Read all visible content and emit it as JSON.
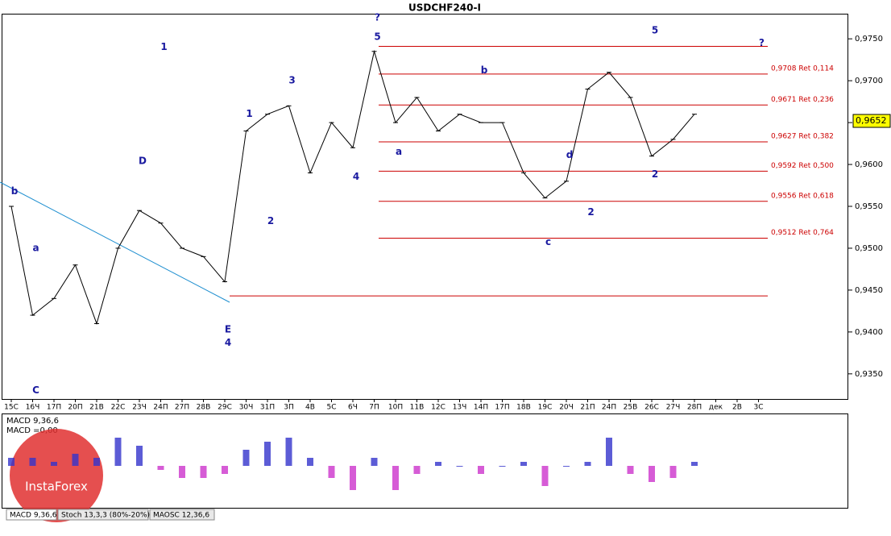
{
  "chart_data": {
    "type": "line",
    "title": "USDCHF240-I",
    "categories": [
      "15С",
      "16Ч",
      "17П",
      "20П",
      "21В",
      "22С",
      "23Ч",
      "24П",
      "27П",
      "28В",
      "29С",
      "30Ч",
      "31П",
      "3П",
      "4В",
      "5С",
      "6Ч",
      "7П",
      "10П",
      "11В",
      "12С",
      "13Ч",
      "14П",
      "17П",
      "18В",
      "19С",
      "20Ч",
      "21П",
      "24П",
      "25В",
      "26С",
      "27Ч",
      "28П",
      "дек",
      "2В",
      "3С"
    ],
    "series": [
      {
        "name": "USDCHF",
        "color": "#000000",
        "values": [
          0.955,
          0.942,
          0.944,
          0.948,
          0.941,
          0.95,
          0.9545,
          0.953,
          0.95,
          0.949,
          0.946,
          0.964,
          0.966,
          0.967,
          0.959,
          0.965,
          0.962,
          0.9735,
          0.965,
          0.968,
          0.964,
          0.966,
          0.965,
          0.965,
          0.959,
          0.956,
          0.958,
          0.969,
          0.971,
          0.968,
          0.961,
          0.963,
          0.966,
          null,
          null,
          null
        ]
      }
    ],
    "ylim": [
      0.932,
      0.978
    ],
    "yticks": [
      {
        "value": 0.935,
        "label": "0,9350"
      },
      {
        "value": 0.94,
        "label": "0,9400"
      },
      {
        "value": 0.945,
        "label": "0,9450"
      },
      {
        "value": 0.95,
        "label": "0,9500"
      },
      {
        "value": 0.955,
        "label": "0,9550"
      },
      {
        "value": 0.96,
        "label": "0,9600"
      },
      {
        "value": 0.965,
        "label": "0,9650"
      },
      {
        "value": 0.97,
        "label": "0,9700"
      },
      {
        "value": 0.975,
        "label": "0,9750"
      }
    ],
    "current_price": {
      "value": 0.9652,
      "label": "0,9652"
    },
    "levels": [
      {
        "value": 0.9741
      },
      {
        "value": 0.9708,
        "label": "0,9708 Ret 0,114"
      },
      {
        "value": 0.9671,
        "label": "0,9671 Ret 0,236"
      },
      {
        "value": 0.9627,
        "label": "0,9627 Ret 0,382"
      },
      {
        "value": 0.9592,
        "label": "0,9592 Ret 0,500"
      },
      {
        "value": 0.9556,
        "label": "0,9556 Ret 0,618"
      },
      {
        "value": 0.9512,
        "label": "0,9512 Ret 0,764"
      },
      {
        "value": 0.9443
      }
    ],
    "level_color": "#cc0000",
    "annotations": [
      {
        "text": "b",
        "x": "15С",
        "y": 0.9568
      },
      {
        "text": "a",
        "x": "16Ч",
        "y": 0.95
      },
      {
        "text": "C",
        "x": "16Ч",
        "y": 0.933
      },
      {
        "text": "D",
        "x": "23Ч",
        "y": 0.9604
      },
      {
        "text": "E",
        "x": "29С",
        "y": 0.9403
      },
      {
        "text": "4",
        "x": "29С",
        "y": 0.9387
      },
      {
        "text": "1",
        "x": "30Ч",
        "y": 0.966
      },
      {
        "text": "2",
        "x": "31П",
        "y": 0.9532
      },
      {
        "text": "3",
        "x": "3П",
        "y": 0.97
      },
      {
        "text": "4",
        "x": "6Ч",
        "y": 0.9585
      },
      {
        "text": "5",
        "x": "7П",
        "y": 0.9752
      },
      {
        "text": "?",
        "x": "7П",
        "y": 0.9775
      },
      {
        "text": "a",
        "x": "10П",
        "y": 0.9615
      },
      {
        "text": "b",
        "x": "14П",
        "y": 0.9712
      },
      {
        "text": "c",
        "x": "19С",
        "y": 0.9507
      },
      {
        "text": "d",
        "x": "20Ч",
        "y": 0.9611
      },
      {
        "text": "2",
        "x": "21П",
        "y": 0.9543
      },
      {
        "text": "1",
        "x": "24П",
        "y": 0.974
      },
      {
        "text": "2",
        "x": "26С",
        "y": 0.9588
      },
      {
        "text": "5",
        "x": "26С",
        "y": 0.976
      },
      {
        "text": "?",
        "x": "3С",
        "y": 0.9745
      }
    ],
    "macd": {
      "title": "MACD 9,36,6",
      "value_label": "MACD =0,00",
      "ylim": [
        -1,
        1
      ],
      "positive_color": "#3333cc",
      "negative_color": "#cc33cc",
      "values": [
        0.2,
        0.2,
        0.1,
        0.3,
        0.2,
        0.7,
        0.5,
        -0.1,
        -0.3,
        -0.3,
        -0.2,
        0.4,
        0.6,
        0.7,
        0.2,
        -0.3,
        -0.6,
        0.2,
        -0.6,
        -0.2,
        0.1,
        0.0,
        -0.2,
        0.0,
        0.1,
        -0.5,
        0.0,
        0.1,
        0.7,
        -0.2,
        -0.4,
        -0.3,
        0.1,
        null,
        null,
        null
      ]
    },
    "tabs": [
      "MACD 9,36,6",
      "Stoch 13,3,3 (80%-20%)",
      "MAOSC 12,36,6"
    ],
    "watermark": "InstaForex"
  }
}
